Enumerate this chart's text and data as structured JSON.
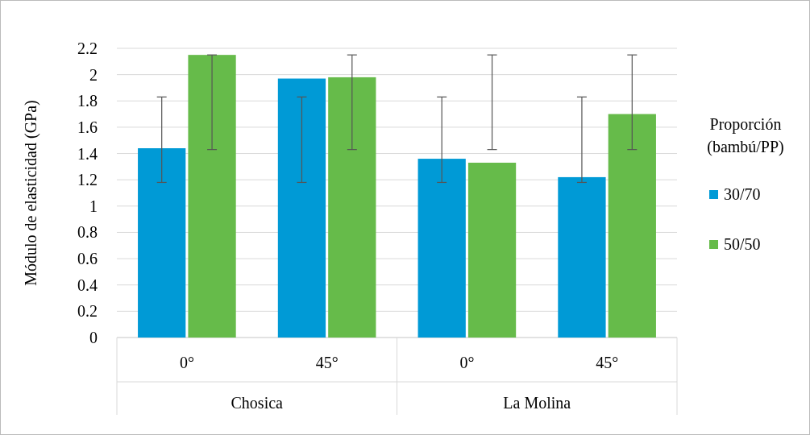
{
  "chart_data": {
    "type": "bar",
    "ylabel": "Módulo de elasticidad (GPa)",
    "legend_title": "Proporción (bambú/PP)",
    "categories": [
      "0°",
      "45°",
      "0°",
      "45°"
    ],
    "annotations": [
      "Chosica",
      "La Molina"
    ],
    "series": [
      {
        "name": "30/70",
        "color": "#009ad6",
        "values": [
          1.44,
          1.97,
          1.36,
          1.22
        ],
        "errors": [
          [
            1.18,
            1.83
          ],
          [
            1.18,
            1.83
          ],
          [
            1.18,
            1.83
          ],
          [
            1.18,
            1.83
          ]
        ]
      },
      {
        "name": "50/50",
        "color": "#66bb4a",
        "values": [
          2.15,
          1.98,
          1.33,
          1.7
        ],
        "errors": [
          [
            1.43,
            2.15
          ],
          [
            1.43,
            2.15
          ],
          [
            1.43,
            2.15
          ],
          [
            1.43,
            2.15
          ]
        ]
      }
    ],
    "ylim": [
      0,
      2.2
    ],
    "yticks": [
      0,
      0.2,
      0.4,
      0.6,
      0.8,
      1,
      1.2,
      1.4,
      1.6,
      1.8,
      2,
      2.2
    ],
    "grid": "y",
    "legend": "right"
  }
}
